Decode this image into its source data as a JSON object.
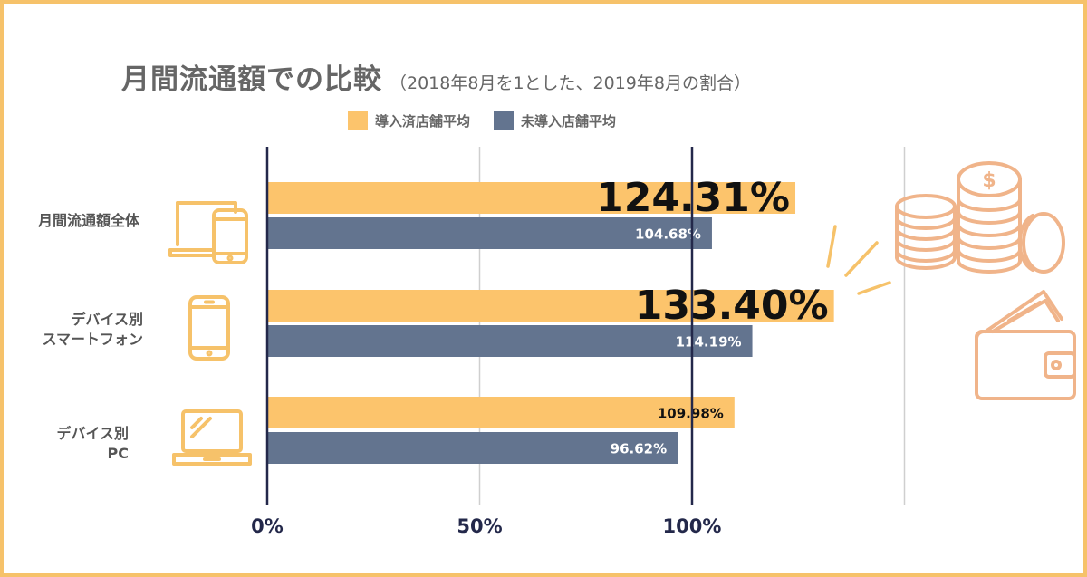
{
  "title": "月間流通額での比較",
  "subtitle": "（2018年8月を1とした、2019年8月の割合）",
  "colors": {
    "orange": "#fcc46c",
    "navy": "#63748f",
    "axis": "#23284a",
    "grid": "#cfcfcf",
    "icon": "#f6c26a",
    "deco": "#f0b48a"
  },
  "legend": [
    {
      "label": "導入済店舗平均",
      "color": "#fcc46c"
    },
    {
      "label": "未導入店舗平均",
      "color": "#63748f"
    }
  ],
  "categories": [
    {
      "line1": "月間流通額全体",
      "line2": "",
      "icon": "laptop-and-phone-icon"
    },
    {
      "line1": "デバイス別",
      "line2": "スマートフォン",
      "icon": "smartphone-icon"
    },
    {
      "line1": "デバイス別",
      "line2": "PC",
      "icon": "laptop-icon"
    }
  ],
  "chart_data": {
    "type": "bar",
    "orientation": "horizontal",
    "title": "月間流通額での比較",
    "subtitle": "（2018年8月を1とした、2019年8月の割合）",
    "categories": [
      "月間流通額全体",
      "デバイス別 スマートフォン",
      "デバイス別 PC"
    ],
    "series": [
      {
        "name": "導入済店舗平均",
        "values": [
          124.31,
          133.4,
          109.98
        ],
        "labels": [
          "124.31%",
          "133.40%",
          "109.98%"
        ],
        "color": "#fcc46c"
      },
      {
        "name": "未導入店舗平均",
        "values": [
          104.68,
          114.19,
          96.62
        ],
        "labels": [
          "104.68%",
          "114.19%",
          "96.62%"
        ],
        "color": "#63748f"
      }
    ],
    "xticks": [
      0,
      50,
      100
    ],
    "xtick_labels": [
      "0%",
      "50%",
      "100%"
    ],
    "xlim": [
      0,
      150
    ],
    "grid": true,
    "legend_position": "top"
  }
}
